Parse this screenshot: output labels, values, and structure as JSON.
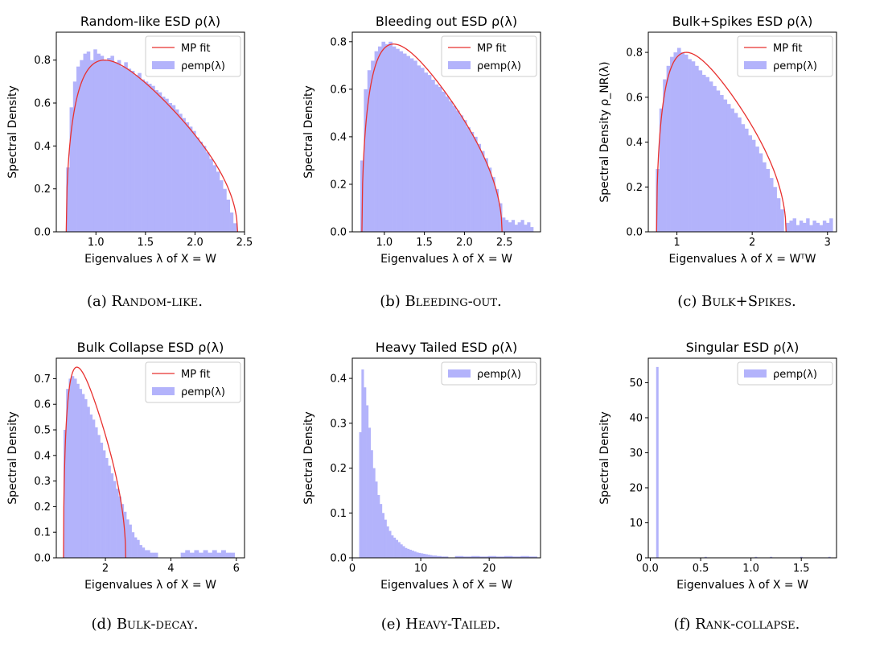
{
  "chart_data": [
    {
      "type": "bar",
      "title": "Random-like ESD ρ(λ)",
      "xlabel": "Eigenvalues λ of X = W",
      "ylabel": "Spectral Density",
      "xlim": [
        0.6,
        2.5
      ],
      "ylim": [
        0,
        0.93
      ],
      "xticks": [
        "1.0",
        "1.5",
        "2.0",
        "2.5"
      ],
      "yticks": [
        "0.0",
        "0.2",
        "0.4",
        "0.6",
        "0.8"
      ],
      "legend": [
        "MP fit",
        "ρemp(λ)"
      ],
      "legend_position": "top-right",
      "mp_fit": {
        "lambda_min": 0.7,
        "lambda_max": 2.43,
        "peak": 0.8
      },
      "histogram": {
        "x_start": 0.7,
        "x_end": 2.42,
        "values": [
          0.3,
          0.58,
          0.7,
          0.77,
          0.8,
          0.83,
          0.84,
          0.8,
          0.85,
          0.83,
          0.82,
          0.8,
          0.81,
          0.82,
          0.79,
          0.8,
          0.77,
          0.79,
          0.76,
          0.75,
          0.73,
          0.74,
          0.71,
          0.7,
          0.69,
          0.68,
          0.66,
          0.65,
          0.63,
          0.62,
          0.6,
          0.59,
          0.57,
          0.55,
          0.53,
          0.51,
          0.49,
          0.47,
          0.44,
          0.42,
          0.4,
          0.37,
          0.34,
          0.31,
          0.28,
          0.24,
          0.2,
          0.15,
          0.09,
          0.04
        ]
      }
    },
    {
      "type": "bar",
      "title": "Bleeding out ESD ρ(λ)",
      "xlabel": "Eigenvalues λ of X = W",
      "ylabel": "Spectral Density",
      "xlim": [
        0.6,
        2.95
      ],
      "ylim": [
        0,
        0.84
      ],
      "xticks": [
        "1.0",
        "1.5",
        "2.0",
        "2.5"
      ],
      "yticks": [
        "0.0",
        "0.2",
        "0.4",
        "0.6",
        "0.8"
      ],
      "legend": [
        "MP fit",
        "ρemp(λ)"
      ],
      "legend_position": "top-right",
      "mp_fit": {
        "lambda_min": 0.72,
        "lambda_max": 2.47,
        "peak": 0.79
      },
      "histogram": {
        "x_start": 0.7,
        "x_end": 2.47,
        "values": [
          0.3,
          0.6,
          0.68,
          0.72,
          0.76,
          0.78,
          0.8,
          0.79,
          0.8,
          0.78,
          0.77,
          0.76,
          0.75,
          0.74,
          0.73,
          0.72,
          0.7,
          0.69,
          0.67,
          0.66,
          0.64,
          0.62,
          0.61,
          0.59,
          0.57,
          0.55,
          0.53,
          0.51,
          0.49,
          0.47,
          0.44,
          0.42,
          0.4,
          0.37,
          0.34,
          0.31,
          0.27,
          0.23,
          0.18,
          0.12
        ],
        "tail": {
          "x_start": 2.47,
          "x_end": 2.86,
          "values": [
            0.06,
            0.05,
            0.04,
            0.05,
            0.03,
            0.04,
            0.05,
            0.03,
            0.04,
            0.02
          ]
        }
      }
    },
    {
      "type": "bar",
      "title": "Bulk+Spikes ESD ρ(λ)",
      "xlabel": "Eigenvalues λ of X = WᵀW",
      "ylabel": "Spectral Density ρ_NR(λ)",
      "xlim": [
        0.62,
        3.12
      ],
      "ylim": [
        0,
        0.89
      ],
      "xticks": [
        "1",
        "2",
        "3"
      ],
      "yticks": [
        "0.0",
        "0.2",
        "0.4",
        "0.6",
        "0.8"
      ],
      "legend": [
        "MP fit",
        "ρemp(λ)"
      ],
      "legend_position": "top-right",
      "mp_fit": {
        "lambda_min": 0.73,
        "lambda_max": 2.45,
        "peak": 0.8
      },
      "histogram": {
        "x_start": 0.72,
        "x_end": 2.42,
        "values": [
          0.28,
          0.55,
          0.68,
          0.74,
          0.78,
          0.8,
          0.82,
          0.8,
          0.79,
          0.77,
          0.76,
          0.74,
          0.72,
          0.7,
          0.69,
          0.67,
          0.65,
          0.63,
          0.61,
          0.59,
          0.57,
          0.55,
          0.53,
          0.51,
          0.48,
          0.46,
          0.43,
          0.41,
          0.38,
          0.35,
          0.31,
          0.28,
          0.24,
          0.2,
          0.15,
          0.1
        ],
        "tail": {
          "x_start": 2.45,
          "x_end": 3.07,
          "values": [
            0.04,
            0.05,
            0.06,
            0.03,
            0.05,
            0.04,
            0.06,
            0.03,
            0.05,
            0.04,
            0.03,
            0.05,
            0.04,
            0.06
          ]
        }
      }
    },
    {
      "type": "bar",
      "title": "Bulk Collapse ESD ρ(λ)",
      "xlabel": "Eigenvalues λ of X = W",
      "ylabel": "Spectral Density",
      "xlim": [
        0.5,
        6.25
      ],
      "ylim": [
        0,
        0.78
      ],
      "xticks": [
        "2",
        "4",
        "6"
      ],
      "yticks": [
        "0.0",
        "0.1",
        "0.2",
        "0.3",
        "0.4",
        "0.5",
        "0.6",
        "0.7"
      ],
      "legend": [
        "MP fit",
        "ρemp(λ)"
      ],
      "legend_position": "top-right",
      "mp_fit": {
        "lambda_min": 0.72,
        "lambda_max": 2.62,
        "peak": 0.745
      },
      "histogram": {
        "x_start": 0.72,
        "x_end": 3.6,
        "values": [
          0.5,
          0.66,
          0.7,
          0.71,
          0.7,
          0.68,
          0.66,
          0.64,
          0.62,
          0.59,
          0.56,
          0.54,
          0.51,
          0.48,
          0.45,
          0.42,
          0.39,
          0.36,
          0.33,
          0.3,
          0.27,
          0.24,
          0.21,
          0.18,
          0.15,
          0.13,
          0.1,
          0.08,
          0.07,
          0.05,
          0.04,
          0.03,
          0.03,
          0.02,
          0.02,
          0.02
        ],
        "tail": {
          "x_start": 4.3,
          "x_end": 5.95,
          "values": [
            0.02,
            0.03,
            0.02,
            0.03,
            0.02,
            0.03,
            0.02,
            0.03,
            0.02,
            0.03,
            0.02,
            0.02
          ]
        }
      }
    },
    {
      "type": "bar",
      "title": "Heavy Tailed ESD ρ(λ)",
      "xlabel": "Eigenvalues λ of X = W",
      "ylabel": "Spectral Density",
      "xlim": [
        0,
        27.5
      ],
      "ylim": [
        0,
        0.445
      ],
      "xticks": [
        "0",
        "10",
        "20"
      ],
      "yticks": [
        "0.0",
        "0.1",
        "0.2",
        "0.3",
        "0.4"
      ],
      "legend": [
        "ρemp(λ)"
      ],
      "legend_position": "top-right",
      "histogram": {
        "x_start": 1.0,
        "x_end": 14.0,
        "values": [
          0.28,
          0.42,
          0.38,
          0.34,
          0.29,
          0.24,
          0.2,
          0.17,
          0.14,
          0.12,
          0.1,
          0.085,
          0.07,
          0.06,
          0.05,
          0.045,
          0.04,
          0.035,
          0.03,
          0.026,
          0.022,
          0.02,
          0.018,
          0.016,
          0.014,
          0.012,
          0.011,
          0.01,
          0.009,
          0.008,
          0.007,
          0.006,
          0.005,
          0.005,
          0.004,
          0.004,
          0.003,
          0.003,
          0.003
        ],
        "tail": {
          "x_start": 15,
          "x_end": 27,
          "values": [
            0.004,
            0.003,
            0.004,
            0.003,
            0.004,
            0.003,
            0.004,
            0.003,
            0.004,
            0.003
          ]
        }
      }
    },
    {
      "type": "bar",
      "title": "Singular ESD ρ(λ)",
      "xlabel": "Eigenvalues λ of X = W",
      "ylabel": "Spectral Density",
      "xlim": [
        -0.02,
        1.85
      ],
      "ylim": [
        0,
        57
      ],
      "xticks": [
        "0.0",
        "0.5",
        "1.0",
        "1.5"
      ],
      "yticks": [
        "0",
        "10",
        "20",
        "30",
        "40",
        "50"
      ],
      "legend": [
        "ρemp(λ)"
      ],
      "legend_position": "top-right",
      "spikes": [
        {
          "x": 0.07,
          "y": 54.5
        },
        {
          "x": 0.55,
          "y": 0.3
        },
        {
          "x": 1.05,
          "y": 0.3
        },
        {
          "x": 1.2,
          "y": 0.3
        },
        {
          "x": 1.5,
          "y": 0.3
        },
        {
          "x": 1.78,
          "y": 0.3
        }
      ]
    }
  ],
  "captions": [
    {
      "label": "(a)",
      "text": "Random-like."
    },
    {
      "label": "(b)",
      "text": "Bleeding-out."
    },
    {
      "label": "(c)",
      "text": "Bulk+Spikes."
    },
    {
      "label": "(d)",
      "text": "Bulk-decay."
    },
    {
      "label": "(e)",
      "text": "Heavy-Tailed."
    },
    {
      "label": "(f)",
      "text": "Rank-collapse."
    }
  ],
  "colors": {
    "hist": "#b3b3fb",
    "mp": "#e8312f",
    "axis": "#000000"
  }
}
